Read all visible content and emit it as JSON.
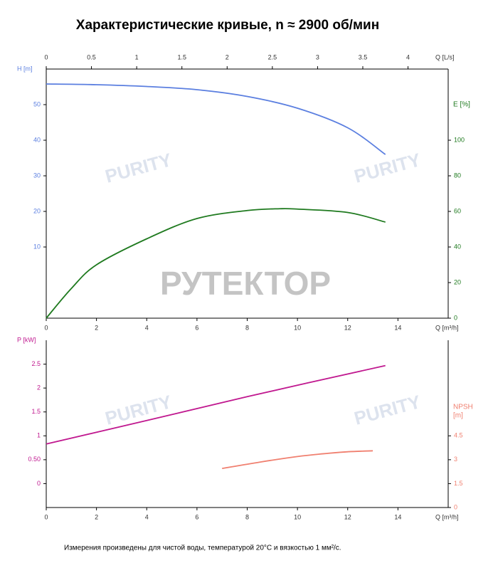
{
  "title": "Характеристические кривые, n ≈ 2900 об/мин",
  "footnote": "Измерения произведены для чистой воды, температурой 20°C и вязкостью 1 мм²/с.",
  "watermarks": [
    "PURITY",
    "РУТЕКТОР"
  ],
  "chart_data": [
    {
      "type": "line",
      "x_label": "Q [m³/h]",
      "xlim": [
        0,
        16
      ],
      "xticks": [
        0,
        2,
        4,
        6,
        8,
        10,
        12,
        14
      ],
      "x2_label": "Q [L/s]",
      "x2lim": [
        0,
        4.444
      ],
      "x2ticks": [
        0,
        0.5,
        1,
        1.5,
        2,
        2.5,
        3,
        3.5,
        4
      ],
      "ylabel": "H [m]",
      "ylim": [
        -10,
        60
      ],
      "yticks": [
        10,
        20,
        30,
        40,
        50
      ],
      "y2label": "E [%]",
      "y2lim": [
        0,
        140
      ],
      "y2ticks": [
        0,
        20,
        40,
        60,
        80,
        100
      ],
      "series": [
        {
          "name": "H",
          "color": "#5b7fe0",
          "x": [
            0,
            2,
            4,
            6,
            8,
            10,
            12,
            13.5
          ],
          "values": [
            55.8,
            55.6,
            55.1,
            54.2,
            52.3,
            49,
            43.5,
            36
          ]
        },
        {
          "name": "E",
          "color": "#1f7a1f",
          "axis": "y2",
          "x": [
            0,
            1,
            2,
            4,
            6,
            8,
            9.3,
            10,
            12,
            13.5
          ],
          "values": [
            0,
            16.7,
            30,
            44.6,
            56,
            60.5,
            61.5,
            61.3,
            59.4,
            54
          ]
        }
      ]
    },
    {
      "type": "line",
      "x_label": "Q [m³/h]",
      "xlim": [
        0,
        16
      ],
      "xticks": [
        0,
        2,
        4,
        6,
        8,
        10,
        12,
        14
      ],
      "ylabel": "P [kW]",
      "ylim": [
        -0.5,
        3
      ],
      "yticks": [
        0,
        {
          "value": 0.5,
          "label": "0.50"
        },
        1,
        1.5,
        2,
        2.5
      ],
      "y2label": [
        "NPSH",
        "[m]"
      ],
      "y2lim": [
        0,
        10.5
      ],
      "y2ticks": [
        0,
        1.5,
        3,
        4.5
      ],
      "series": [
        {
          "name": "P",
          "color": "#c0188f",
          "x": [
            0,
            4,
            8,
            13.5
          ],
          "values": [
            0.83,
            1.32,
            1.82,
            2.47
          ]
        },
        {
          "name": "NPSH",
          "color": "#f08070",
          "axis": "y2",
          "x": [
            7,
            8.5,
            10,
            11,
            12,
            13
          ],
          "values": [
            2.45,
            2.85,
            3.2,
            3.37,
            3.5,
            3.56
          ]
        }
      ]
    }
  ]
}
